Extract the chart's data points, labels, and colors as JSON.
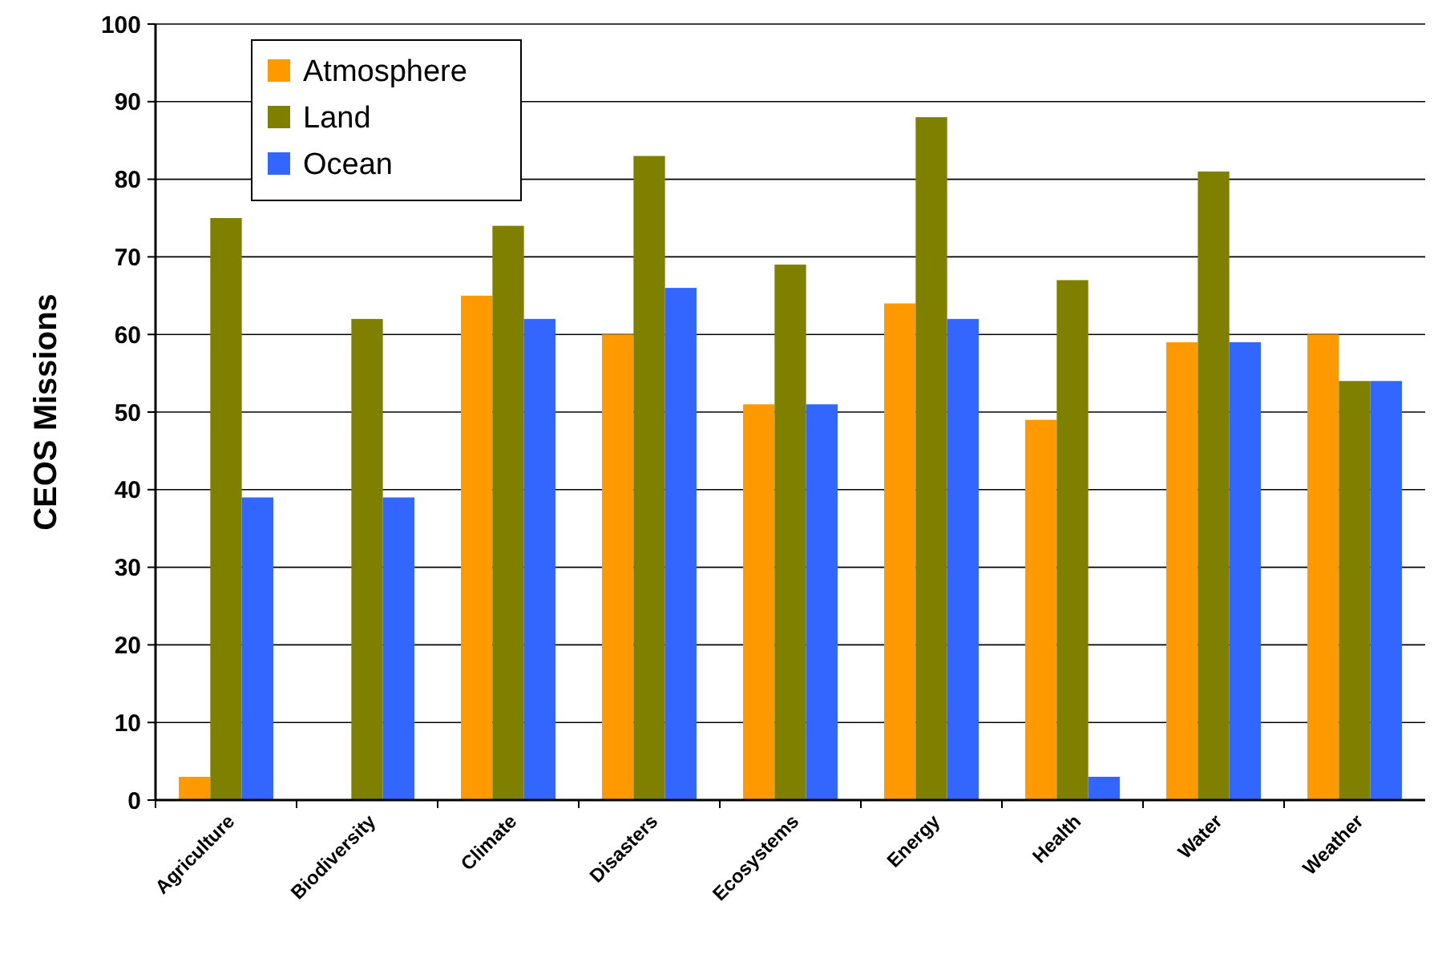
{
  "chart_data": {
    "type": "bar",
    "ylabel": "CEOS Missions",
    "categories": [
      "Agriculture",
      "Biodiversity",
      "Climate",
      "Disasters",
      "Ecosystems",
      "Energy",
      "Health",
      "Water",
      "Weather"
    ],
    "series": [
      {
        "name": "Atmosphere",
        "color": "#ff9900",
        "values": [
          3,
          0,
          65,
          60,
          51,
          64,
          49,
          59,
          60
        ]
      },
      {
        "name": "Land",
        "color": "#808000",
        "values": [
          75,
          62,
          74,
          83,
          69,
          88,
          67,
          81,
          54
        ]
      },
      {
        "name": "Ocean",
        "color": "#3366ff",
        "values": [
          39,
          39,
          62,
          66,
          51,
          62,
          3,
          59,
          54
        ]
      }
    ],
    "ylim": [
      0,
      100
    ],
    "yticks": [
      0,
      10,
      20,
      30,
      40,
      50,
      60,
      70,
      80,
      90,
      100
    ],
    "grid": "y",
    "legend": "top left"
  }
}
